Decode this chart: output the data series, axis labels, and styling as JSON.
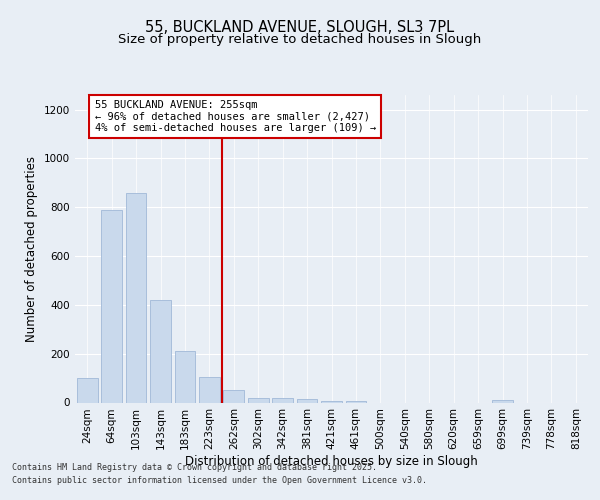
{
  "title_line1": "55, BUCKLAND AVENUE, SLOUGH, SL3 7PL",
  "title_line2": "Size of property relative to detached houses in Slough",
  "xlabel": "Distribution of detached houses by size in Slough",
  "ylabel": "Number of detached properties",
  "bar_labels": [
    "24sqm",
    "64sqm",
    "103sqm",
    "143sqm",
    "183sqm",
    "223sqm",
    "262sqm",
    "302sqm",
    "342sqm",
    "381sqm",
    "421sqm",
    "461sqm",
    "500sqm",
    "540sqm",
    "580sqm",
    "620sqm",
    "659sqm",
    "699sqm",
    "739sqm",
    "778sqm",
    "818sqm"
  ],
  "bar_values": [
    100,
    790,
    860,
    420,
    210,
    105,
    50,
    20,
    20,
    15,
    5,
    5,
    0,
    0,
    0,
    0,
    0,
    10,
    0,
    0,
    0
  ],
  "bar_color": "#c9d9ec",
  "bar_edge_color": "#a0b8d8",
  "vline_color": "#cc0000",
  "vline_x_index": 6,
  "annotation_text_line1": "55 BUCKLAND AVENUE: 255sqm",
  "annotation_text_line2": "← 96% of detached houses are smaller (2,427)",
  "annotation_text_line3": "4% of semi-detached houses are larger (109) →",
  "annotation_box_color": "#ffffff",
  "annotation_box_edge_color": "#cc0000",
  "ylim": [
    0,
    1260
  ],
  "yticks": [
    0,
    200,
    400,
    600,
    800,
    1000,
    1200
  ],
  "bg_color": "#e8eef5",
  "plot_bg_color": "#e8eef5",
  "footer_line1": "Contains HM Land Registry data © Crown copyright and database right 2025.",
  "footer_line2": "Contains public sector information licensed under the Open Government Licence v3.0.",
  "title_fontsize": 10.5,
  "subtitle_fontsize": 9.5,
  "axis_label_fontsize": 8.5,
  "tick_fontsize": 7.5,
  "annotation_fontsize": 7.5,
  "footer_fontsize": 6.0
}
